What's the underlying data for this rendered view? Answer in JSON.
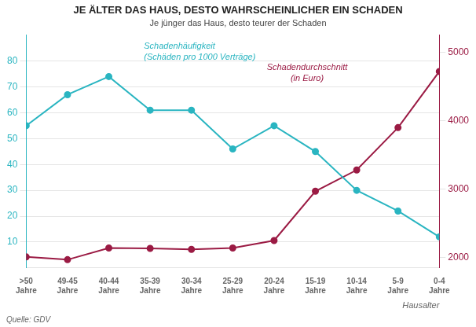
{
  "chart_data": {
    "type": "line",
    "title": "JE ÄLTER DAS HAUS, DESTO WAHRSCHEINLICHER EIN SCHADEN",
    "subtitle": "Je jünger das Haus, desto teurer der Schaden",
    "annotations": [
      "Quelle: GDV"
    ],
    "xlabel": "Hausalter",
    "categories": [
      ">50\nJahre",
      "49-45\nJahre",
      "40-44\nJahre",
      "35-39\nJahre",
      "30-34\nJahre",
      "25-29\nJahre",
      "20-24\nJahre",
      "15-19\nJahre",
      "10-14\nJahre",
      "5-9\nJahre",
      "0-4\nJahre"
    ],
    "series": [
      {
        "name": "Schadenhäufigkeit\n(Schäden pro 1000 Verträge)",
        "color": "#2ab5c1",
        "marker": "circle",
        "values": [
          55,
          67,
          74,
          61,
          61,
          46,
          55,
          45,
          30,
          22,
          12
        ]
      },
      {
        "name": "Schadendurchschnitt\n(in Euro)",
        "color": "#9b1b44",
        "marker": "circle",
        "axis": "y2",
        "values": [
          2010,
          1970,
          2140,
          2135,
          2120,
          2140,
          2250,
          2970,
          3280,
          3900,
          4720
        ]
      }
    ],
    "ylim": [
      0,
      90
    ],
    "yticks": [
      10,
      20,
      30,
      40,
      50,
      60,
      70,
      80
    ],
    "y2lim": [
      1850,
      5250
    ],
    "y2ticks": [
      2000,
      3000,
      4000,
      5000
    ],
    "grid": true
  }
}
